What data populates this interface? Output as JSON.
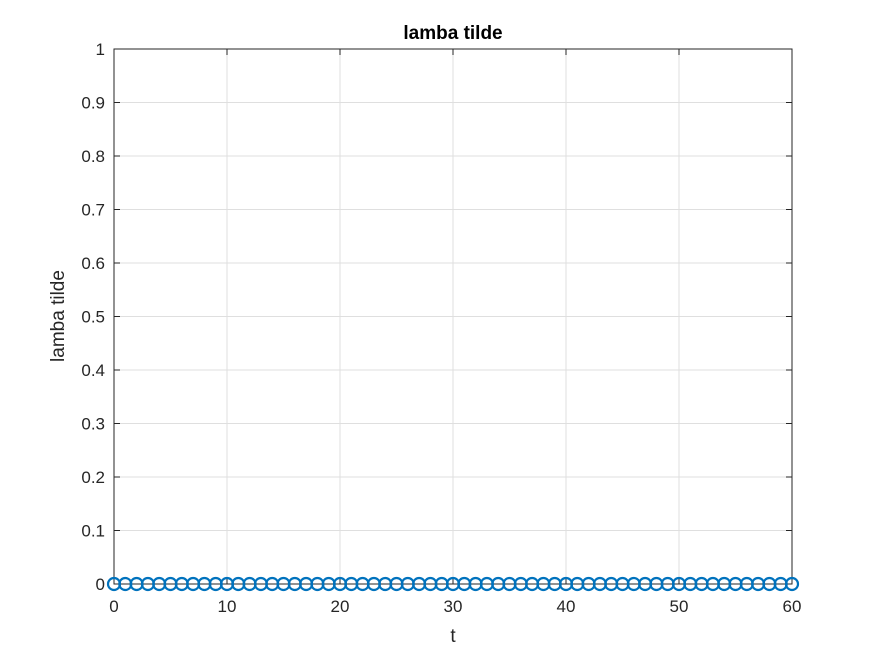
{
  "chart_data": {
    "type": "scatter",
    "title": "lamba tilde",
    "xlabel": "t",
    "ylabel": "lamba tilde",
    "xlim": [
      0,
      60
    ],
    "ylim": [
      0,
      1
    ],
    "xticks": [
      "0",
      "10",
      "20",
      "30",
      "40",
      "50",
      "60"
    ],
    "yticks": [
      "0",
      "0.1",
      "0.2",
      "0.3",
      "0.4",
      "0.5",
      "0.6",
      "0.7",
      "0.8",
      "0.9",
      "1"
    ],
    "grid": true,
    "marker": "circle",
    "series": [
      {
        "color": "#0072BD",
        "x": [
          0,
          1,
          2,
          3,
          4,
          5,
          6,
          7,
          8,
          9,
          10,
          11,
          12,
          13,
          14,
          15,
          16,
          17,
          18,
          19,
          20,
          21,
          22,
          23,
          24,
          25,
          26,
          27,
          28,
          29,
          30,
          31,
          32,
          33,
          34,
          35,
          36,
          37,
          38,
          39,
          40,
          41,
          42,
          43,
          44,
          45,
          46,
          47,
          48,
          49,
          50,
          51,
          52,
          53,
          54,
          55,
          56,
          57,
          58,
          59,
          60
        ],
        "y": [
          0,
          0,
          0,
          0,
          0,
          0,
          0,
          0,
          0,
          0,
          0,
          0,
          0,
          0,
          0,
          0,
          0,
          0,
          0,
          0,
          0,
          0,
          0,
          0,
          0,
          0,
          0,
          0,
          0,
          0,
          0,
          0,
          0,
          0,
          0,
          0,
          0,
          0,
          0,
          0,
          0,
          0,
          0,
          0,
          0,
          0,
          0,
          0,
          0,
          0,
          0,
          0,
          0,
          0,
          0,
          0,
          0,
          0,
          0,
          0,
          0
        ]
      }
    ]
  }
}
